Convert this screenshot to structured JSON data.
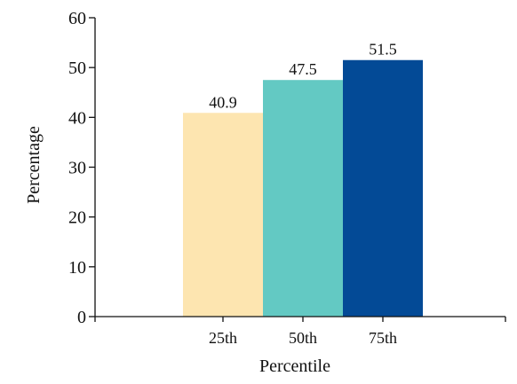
{
  "chart_data": {
    "type": "bar",
    "categories": [
      "25th",
      "50th",
      "75th"
    ],
    "values": [
      40.9,
      47.5,
      51.5
    ],
    "value_labels": [
      "40.9",
      "47.5",
      "51.5"
    ],
    "title": "",
    "xlabel": "Percentile",
    "ylabel": "Percentage",
    "ylim": [
      0,
      60
    ],
    "yticks": [
      0,
      10,
      20,
      30,
      40,
      50,
      60
    ],
    "ytick_labels": [
      "0",
      "10",
      "20",
      "30",
      "40",
      "50",
      "60"
    ],
    "grid": false,
    "legend": "none",
    "colors": [
      "#FDE5B0",
      "#63C9C3",
      "#034A96"
    ]
  }
}
